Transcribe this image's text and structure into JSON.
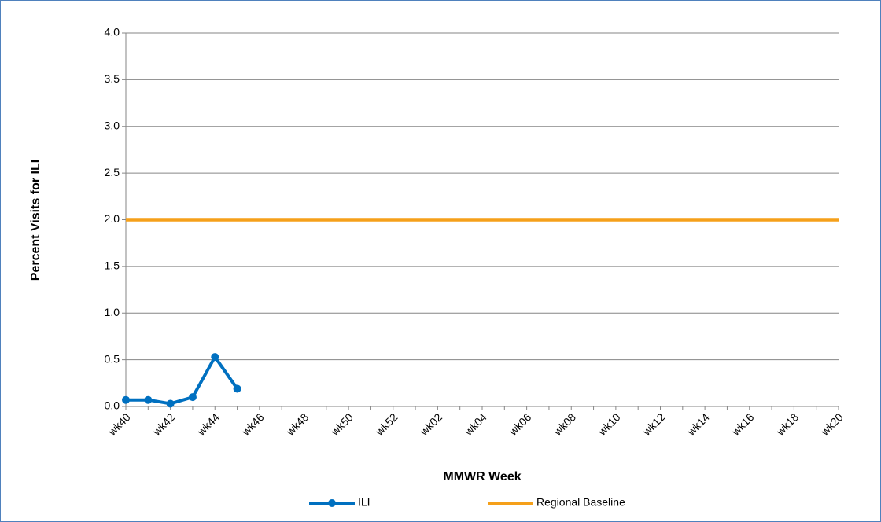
{
  "chart_data": {
    "type": "line",
    "x_label": "MMWR Week",
    "y_label": "Percent Visits for ILI",
    "categories": [
      "wk40",
      null,
      "wk42",
      null,
      "wk44",
      null,
      "wk46",
      null,
      "wk48",
      null,
      "wk50",
      null,
      "wk52",
      null,
      "wk02",
      null,
      "wk04",
      null,
      "wk06",
      null,
      "wk08",
      null,
      "wk10",
      null,
      "wk12",
      null,
      "wk14",
      null,
      "wk16",
      null,
      "wk18",
      null,
      "wk20"
    ],
    "series": [
      {
        "name": "ILI",
        "color": "#0070c0",
        "marker": true,
        "values": [
          0.07,
          0.07,
          0.03,
          0.1,
          0.53,
          0.19,
          null,
          null,
          null,
          null,
          null,
          null,
          null,
          null,
          null,
          null,
          null,
          null,
          null,
          null,
          null,
          null,
          null,
          null,
          null,
          null,
          null,
          null,
          null,
          null,
          null,
          null,
          null
        ]
      },
      {
        "name": "Regional Baseline",
        "color": "#f5a01a",
        "marker": false,
        "values": [
          2.0,
          2.0,
          2.0,
          2.0,
          2.0,
          2.0,
          2.0,
          2.0,
          2.0,
          2.0,
          2.0,
          2.0,
          2.0,
          2.0,
          2.0,
          2.0,
          2.0,
          2.0,
          2.0,
          2.0,
          2.0,
          2.0,
          2.0,
          2.0,
          2.0,
          2.0,
          2.0,
          2.0,
          2.0,
          2.0,
          2.0,
          2.0,
          2.0
        ]
      }
    ],
    "ylim": [
      0,
      4
    ],
    "yticks": [
      {
        "value": 0,
        "label": "0.0"
      },
      {
        "value": 0.5,
        "label": "0.5"
      },
      {
        "value": 1,
        "label": "1.0"
      },
      {
        "value": 1.5,
        "label": "1.5"
      },
      {
        "value": 2,
        "label": "2.0"
      },
      {
        "value": 2.5,
        "label": "2.5"
      },
      {
        "value": 3,
        "label": "3.0"
      },
      {
        "value": 3.5,
        "label": "3.5"
      },
      {
        "value": 4,
        "label": "4.0"
      }
    ],
    "grid": true,
    "legend": "bottom"
  }
}
